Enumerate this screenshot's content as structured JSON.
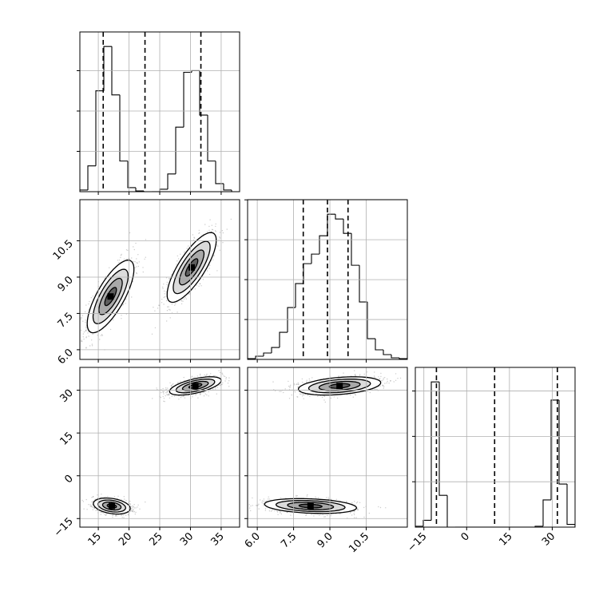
{
  "chart_data": {
    "type": "corner",
    "parameters": [
      "",
      "",
      ""
    ],
    "axes": {
      "p0": {
        "range": [
          12,
          38
        ],
        "ticks": [
          15,
          20,
          25,
          30,
          35
        ],
        "tick_labels": [
          "15",
          "20",
          "25",
          "30",
          "35"
        ]
      },
      "p1": {
        "range": [
          5.6,
          12.2
        ],
        "ticks": [
          6.0,
          7.5,
          9.0,
          10.5
        ],
        "tick_labels": [
          "6.0",
          "7.5",
          "9.0",
          "10.5"
        ]
      },
      "p2": {
        "range": [
          -18,
          38
        ],
        "ticks": [
          -15,
          0,
          15,
          30
        ],
        "tick_labels": [
          "−15",
          "0",
          "15",
          "30"
        ]
      }
    },
    "histograms": [
      {
        "param": "p0",
        "bin_edges": [
          12,
          13.3,
          14.6,
          15.9,
          17.2,
          18.5,
          19.8,
          21.1,
          22.4,
          23.7,
          25,
          26.3,
          27.6,
          28.9,
          30.2,
          31.5,
          32.8,
          34.1,
          35.4,
          36.7,
          38
        ],
        "counts": [
          2,
          32,
          125,
          180,
          120,
          38,
          5,
          1,
          0,
          0,
          3,
          22,
          80,
          148,
          150,
          95,
          38,
          10,
          2,
          0
        ],
        "quantiles": [
          15.8,
          22.6,
          31.7
        ]
      },
      {
        "param": "p1",
        "bin_edges": [
          5.6,
          5.93,
          6.26,
          6.59,
          6.92,
          7.25,
          7.58,
          7.91,
          8.24,
          8.57,
          8.9,
          9.23,
          9.56,
          9.89,
          10.22,
          10.55,
          10.88,
          11.21,
          11.54,
          11.87,
          12.2
        ],
        "counts": [
          1,
          4,
          8,
          15,
          34,
          65,
          95,
          120,
          132,
          155,
          182,
          176,
          158,
          118,
          72,
          26,
          12,
          6,
          2,
          1
        ],
        "quantiles": [
          7.9,
          8.9,
          9.75
        ]
      },
      {
        "param": "p2",
        "bin_edges": [
          -18,
          -15.2,
          -12.4,
          -9.6,
          -6.8,
          -4,
          -1.2,
          1.6,
          4.4,
          7.2,
          10,
          12.8,
          15.6,
          18.4,
          21.2,
          24,
          26.8,
          29.6,
          32.4,
          35.2,
          38
        ],
        "counts": [
          2,
          15,
          320,
          70,
          0,
          0,
          0,
          0,
          0,
          0,
          0,
          0,
          0,
          0,
          0,
          2,
          60,
          280,
          95,
          6
        ],
        "quantiles": [
          -10.6,
          9.8,
          31.8
        ]
      }
    ],
    "scatter_panels": [
      {
        "x": "p0",
        "y": "p1",
        "clusters": [
          {
            "center": [
              17.0,
              8.2
            ],
            "sigma_x": 1.9,
            "sigma_y": 0.75,
            "rho": 0.75,
            "count": 1500
          },
          {
            "center": [
              30.2,
              9.4
            ],
            "sigma_x": 2.0,
            "sigma_y": 0.72,
            "rho": 0.78,
            "count": 1500
          }
        ]
      },
      {
        "x": "p0",
        "y": "p2",
        "clusters": [
          {
            "center": [
              17.2,
              -10.6
            ],
            "sigma_x": 1.5,
            "sigma_y": 1.4,
            "rho": -0.3,
            "count": 1500
          },
          {
            "center": [
              30.8,
              31.5
            ],
            "sigma_x": 2.1,
            "sigma_y": 1.6,
            "rho": 0.6,
            "count": 1500
          }
        ]
      },
      {
        "x": "p1",
        "y": "p2",
        "clusters": [
          {
            "center": [
              8.2,
              -10.6
            ],
            "sigma_x": 0.95,
            "sigma_y": 1.3,
            "rho": -0.25,
            "count": 1500
          },
          {
            "center": [
              9.4,
              31.5
            ],
            "sigma_x": 0.85,
            "sigma_y": 1.6,
            "rho": 0.35,
            "count": 1500
          }
        ]
      }
    ],
    "grid": true,
    "legend": "none",
    "colors": {
      "points": "#6e6e6e",
      "line": "#000000"
    }
  }
}
